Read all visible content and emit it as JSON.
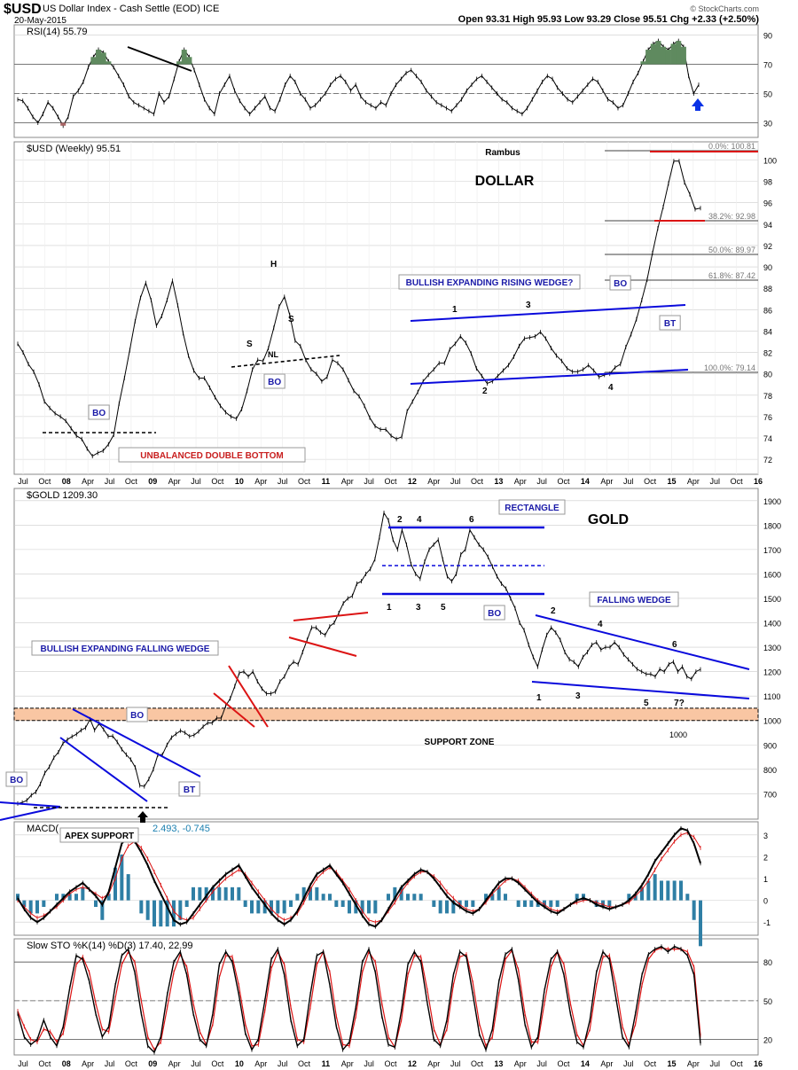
{
  "header": {
    "symbol": "$USD",
    "name": "US Dollar Index - Cash Settle (EOD)  ICE",
    "date": "20-May-2015",
    "quote": "Open 93.31   High 95.93   Low 93.29   Close 95.51   Chg +2.33 (+2.50%)",
    "stamp": "© StockCharts.com"
  },
  "colors": {
    "price": "#000000",
    "trendline": "#0a0adc",
    "red_line": "#dc1414",
    "support_zone": "#f9c6a3",
    "histogram": "#2f7fa5",
    "rsi_fill": "#5f8a5f",
    "callout_text": "#1a1aa8",
    "callout_red": "#c81e1e",
    "grid": "#cccccc"
  },
  "x_axis_labels": [
    "Jul",
    "Oct",
    "08",
    "Apr",
    "Jul",
    "Oct",
    "09",
    "Apr",
    "Jul",
    "Oct",
    "10",
    "Apr",
    "Jul",
    "Oct",
    "11",
    "Apr",
    "Jul",
    "Oct",
    "12",
    "Apr",
    "Jul",
    "Oct",
    "13",
    "Apr",
    "Jul",
    "Oct",
    "14",
    "Apr",
    "Jul",
    "Oct",
    "15",
    "Apr",
    "Jul",
    "Oct",
    "16"
  ],
  "chart_data": [
    {
      "panel": "rsi",
      "type": "line",
      "title": "RSI(14) 55.79",
      "y_ticks": [
        90,
        70,
        50,
        30
      ],
      "ylim": [
        20,
        97
      ],
      "reference_lines": [
        70,
        50,
        30
      ],
      "series": [
        {
          "values": [
            46,
            45,
            40,
            34,
            30,
            36,
            44,
            40,
            34,
            28,
            34,
            48,
            52,
            58,
            68,
            75,
            80,
            78,
            72,
            68,
            62,
            56,
            48,
            44,
            42,
            40,
            38,
            36,
            50,
            44,
            48,
            60,
            72,
            80,
            75,
            66,
            56,
            46,
            40,
            36,
            50,
            56,
            62,
            52,
            45,
            40,
            36,
            40,
            44,
            48,
            40,
            38,
            46,
            56,
            62,
            58,
            50,
            46,
            40,
            42,
            46,
            50,
            56,
            60,
            62,
            58,
            52,
            56,
            48,
            44,
            42,
            40,
            44,
            42,
            50,
            56,
            60,
            64,
            66,
            62,
            58,
            52,
            48,
            44,
            42,
            40,
            38,
            42,
            46,
            52,
            56,
            60,
            62,
            58,
            54,
            50,
            46,
            44,
            40,
            38,
            36,
            40,
            46,
            52,
            58,
            62,
            60,
            54,
            50,
            46,
            44,
            48,
            52,
            56,
            60,
            58,
            52,
            46,
            44,
            40,
            42,
            50,
            58,
            64,
            72,
            80,
            84,
            86,
            82,
            80,
            84,
            86,
            82,
            62,
            50,
            56
          ]
        }
      ],
      "annotations": [
        "divergence line",
        "up arrow"
      ]
    },
    {
      "panel": "usd",
      "type": "line",
      "title": "$USD (Weekly) 95.51",
      "y_ticks": [
        100,
        98,
        96,
        94,
        92,
        90,
        88,
        86,
        84,
        82,
        80,
        78,
        76,
        74,
        72
      ],
      "ylim": [
        70.6,
        101.7
      ],
      "series": [
        {
          "name": "$USD",
          "values": [
            82.8,
            82.0,
            80.9,
            80.2,
            79.0,
            77.4,
            76.8,
            76.3,
            76.0,
            75.6,
            74.9,
            74.2,
            73.9,
            73.0,
            72.3,
            72.6,
            72.8,
            73.4,
            74.3,
            77.2,
            79.6,
            82.2,
            84.9,
            87.1,
            88.5,
            86.9,
            84.5,
            85.4,
            86.9,
            88.7,
            86.4,
            83.8,
            81.7,
            80.3,
            79.6,
            79.6,
            78.7,
            77.8,
            77.0,
            76.4,
            76.0,
            75.8,
            76.7,
            78.4,
            80.4,
            81.3,
            81.2,
            82.4,
            84.3,
            86.3,
            87.2,
            85.5,
            83.1,
            82.6,
            81.3,
            80.4,
            80.0,
            79.3,
            79.7,
            81.3,
            81.0,
            80.4,
            79.4,
            78.4,
            77.9,
            77.0,
            75.9,
            75.1,
            74.8,
            74.8,
            74.2,
            73.9,
            74.1,
            76.5,
            77.4,
            78.3,
            79.3,
            79.9,
            80.4,
            81.0,
            81.0,
            82.3,
            82.8,
            83.5,
            82.9,
            81.9,
            80.5,
            79.8,
            79.1,
            79.3,
            79.8,
            80.3,
            80.8,
            81.6,
            82.6,
            83.3,
            83.4,
            83.5,
            83.9,
            83.3,
            82.4,
            81.7,
            81.2,
            80.5,
            80.2,
            80.2,
            80.4,
            80.8,
            80.3,
            79.7,
            79.9,
            80.0,
            80.6,
            80.9,
            82.5,
            83.7,
            85.1,
            86.9,
            88.8,
            91.3,
            93.6,
            95.6,
            97.8,
            99.9,
            99.9,
            97.9,
            96.8,
            95.4,
            95.5
          ]
        }
      ],
      "fib_levels": [
        "0.0%: 100.81",
        "38.2%: 92.98",
        "50.0%: 89.97",
        "61.8%: 87.42",
        "100.0%: 79.14"
      ],
      "annotations": [
        "Rambus",
        "DOLLAR",
        "BO",
        "UNBALANCED DOUBLE BOTTOM",
        "S",
        "H",
        "S",
        "NL",
        "BO",
        "BULLISH EXPANDING RISING WEDGE?",
        "1",
        "2",
        "3",
        "4",
        "BO",
        "BT"
      ]
    },
    {
      "panel": "gold",
      "type": "line",
      "title": "$GOLD 1209.30",
      "y_ticks": [
        1900,
        1800,
        1700,
        1600,
        1500,
        1400,
        1300,
        1200,
        1100,
        1000,
        900,
        800,
        700
      ],
      "ylim": [
        596,
        1950
      ],
      "series": [
        {
          "name": "$GOLD",
          "values": [
            660,
            664,
            673,
            694,
            707,
            740,
            785,
            810,
            848,
            870,
            906,
            922,
            934,
            944,
            960,
            970,
            1005,
            960,
            988,
            963,
            935,
            936,
            912,
            882,
            860,
            840,
            808,
            734,
            730,
            760,
            800,
            860,
            860,
            900,
            930,
            945,
            958,
            950,
            935,
            940,
            955,
            975,
            990,
            990,
            1010,
            1010,
            1060,
            1090,
            1140,
            1195,
            1200,
            1180,
            1200,
            1160,
            1130,
            1110,
            1110,
            1118,
            1160,
            1180,
            1220,
            1240,
            1230,
            1280,
            1330,
            1380,
            1380,
            1360,
            1350,
            1385,
            1400,
            1440,
            1480,
            1500,
            1510,
            1560,
            1570,
            1600,
            1620,
            1660,
            1750,
            1850,
            1820,
            1740,
            1700,
            1780,
            1720,
            1640,
            1600,
            1580,
            1650,
            1700,
            1720,
            1740,
            1660,
            1590,
            1570,
            1600,
            1680,
            1700,
            1780,
            1750,
            1720,
            1700,
            1670,
            1630,
            1590,
            1560,
            1540,
            1500,
            1460,
            1400,
            1370,
            1310,
            1260,
            1220,
            1290,
            1350,
            1380,
            1360,
            1330,
            1280,
            1250,
            1240,
            1220,
            1260,
            1280,
            1310,
            1320,
            1290,
            1300,
            1300,
            1320,
            1300,
            1270,
            1250,
            1230,
            1210,
            1200,
            1190,
            1190,
            1180,
            1210,
            1200,
            1230,
            1240,
            1200,
            1220,
            1180,
            1170,
            1200,
            1209
          ]
        }
      ],
      "support_zone": [
        1000,
        1050
      ],
      "annotations": [
        "GOLD",
        "BULLISH EXPANDING FALLING WEDGE",
        "BO",
        "BO",
        "BT",
        "APEX SUPPORT",
        "SUPPORT ZONE",
        "1000",
        "RECTANGLE",
        "2",
        "4",
        "6",
        "1",
        "3",
        "5",
        "BO",
        "FALLING WEDGE",
        "2",
        "4",
        "6",
        "1",
        "3",
        "5",
        "7?"
      ]
    },
    {
      "panel": "macd",
      "type": "line",
      "title": "MACD(",
      "title_tail": "2.493, -0.745",
      "y_ticks": [
        3,
        2,
        1,
        0,
        -1
      ],
      "ylim": [
        -1.6,
        3.6
      ],
      "series": [
        {
          "name": "MACD",
          "values": [
            0.1,
            -0.4,
            -0.8,
            -1.0,
            -0.8,
            -0.5,
            -0.2,
            0.1,
            0.4,
            0.6,
            0.8,
            0.5,
            0.2,
            -0.2,
            0.4,
            1.5,
            2.6,
            2.9,
            2.7,
            2.2,
            1.6,
            0.9,
            0.3,
            -0.3,
            -0.9,
            -1.1,
            -1.0,
            -0.6,
            -0.2,
            0.2,
            0.6,
            0.9,
            1.2,
            1.4,
            1.6,
            1.1,
            0.6,
            0.2,
            -0.2,
            -0.6,
            -0.9,
            -1.1,
            -0.9,
            -0.5,
            0.1,
            0.7,
            1.2,
            1.4,
            1.6,
            1.2,
            0.8,
            0.3,
            -0.2,
            -0.7,
            -1.1,
            -1.2,
            -0.9,
            -0.4,
            0.1,
            0.6,
            0.9,
            1.2,
            1.4,
            1.3,
            1.0,
            0.6,
            0.2,
            -0.1,
            -0.3,
            -0.5,
            -0.6,
            -0.4,
            0.0,
            0.4,
            0.8,
            1.0,
            1.0,
            0.8,
            0.5,
            0.2,
            -0.1,
            -0.3,
            -0.5,
            -0.6,
            -0.4,
            -0.2,
            0.0,
            0.1,
            0.0,
            -0.2,
            -0.3,
            -0.4,
            -0.3,
            -0.2,
            0.0,
            0.3,
            0.7,
            1.2,
            1.8,
            2.2,
            2.6,
            3.0,
            3.3,
            3.2,
            2.6,
            1.7
          ]
        },
        {
          "name": "Signal",
          "values": [
            0.0,
            -0.3,
            -0.6,
            -0.8,
            -0.7,
            -0.5,
            -0.3,
            0.0,
            0.3,
            0.5,
            0.6,
            0.5,
            0.3,
            0.1,
            0.3,
            1.0,
            1.9,
            2.5,
            2.7,
            2.4,
            1.9,
            1.3,
            0.7,
            0.1,
            -0.5,
            -0.8,
            -0.9,
            -0.8,
            -0.4,
            0.0,
            0.4,
            0.7,
            1.0,
            1.2,
            1.4,
            1.2,
            0.8,
            0.4,
            0.0,
            -0.4,
            -0.7,
            -0.9,
            -0.8,
            -0.6,
            -0.1,
            0.5,
            1.0,
            1.3,
            1.5,
            1.3,
            0.9,
            0.5,
            0.0,
            -0.5,
            -0.9,
            -1.0,
            -0.9,
            -0.5,
            -0.1,
            0.4,
            0.8,
            1.1,
            1.3,
            1.3,
            1.1,
            0.8,
            0.4,
            0.1,
            -0.2,
            -0.4,
            -0.5,
            -0.4,
            -0.1,
            0.3,
            0.6,
            0.9,
            1.0,
            0.9,
            0.6,
            0.3,
            0.0,
            -0.2,
            -0.4,
            -0.5,
            -0.4,
            -0.2,
            -0.1,
            0.0,
            0.0,
            -0.1,
            -0.2,
            -0.3,
            -0.3,
            -0.2,
            -0.1,
            0.2,
            0.5,
            0.9,
            1.4,
            1.9,
            2.3,
            2.7,
            3.0,
            3.1,
            2.9,
            2.4
          ]
        }
      ]
    },
    {
      "panel": "sto",
      "type": "line",
      "title": "Slow STO %K(14) %D(3) 17.40, 22.99",
      "y_ticks": [
        80,
        50,
        20
      ],
      "ylim": [
        8,
        98
      ],
      "reference_lines": [
        80,
        50,
        20
      ],
      "series": [
        {
          "name": "%K",
          "values": [
            40,
            22,
            16,
            20,
            35,
            22,
            15,
            30,
            60,
            85,
            82,
            65,
            40,
            22,
            30,
            62,
            85,
            90,
            72,
            40,
            15,
            10,
            22,
            55,
            80,
            88,
            70,
            40,
            20,
            15,
            40,
            78,
            88,
            80,
            55,
            25,
            12,
            20,
            50,
            82,
            90,
            70,
            35,
            15,
            20,
            55,
            85,
            88,
            62,
            30,
            12,
            18,
            45,
            80,
            90,
            72,
            38,
            16,
            14,
            42,
            78,
            88,
            80,
            48,
            20,
            15,
            35,
            70,
            88,
            84,
            55,
            24,
            12,
            28,
            65,
            86,
            90,
            66,
            32,
            14,
            22,
            58,
            82,
            88,
            70,
            40,
            18,
            14,
            35,
            72,
            88,
            82,
            52,
            22,
            14,
            40,
            70,
            86,
            90,
            92,
            88,
            92,
            90,
            85,
            70,
            17
          ]
        },
        {
          "name": "%D",
          "values": [
            42,
            30,
            20,
            18,
            28,
            26,
            18,
            25,
            50,
            78,
            84,
            72,
            48,
            28,
            26,
            52,
            78,
            88,
            80,
            50,
            22,
            12,
            18,
            45,
            72,
            86,
            76,
            48,
            26,
            16,
            32,
            68,
            85,
            84,
            62,
            32,
            15,
            16,
            42,
            75,
            88,
            78,
            45,
            20,
            18,
            45,
            78,
            88,
            72,
            38,
            16,
            15,
            38,
            72,
            88,
            80,
            48,
            22,
            14,
            35,
            70,
            85,
            84,
            58,
            28,
            16,
            28,
            62,
            84,
            86,
            64,
            32,
            15,
            22,
            55,
            82,
            89,
            74,
            40,
            18,
            18,
            48,
            76,
            88,
            78,
            48,
            24,
            15,
            28,
            62,
            84,
            85,
            62,
            30,
            16,
            32,
            62,
            82,
            89,
            91,
            90,
            90,
            90,
            88,
            76,
            23
          ]
        }
      ]
    }
  ]
}
